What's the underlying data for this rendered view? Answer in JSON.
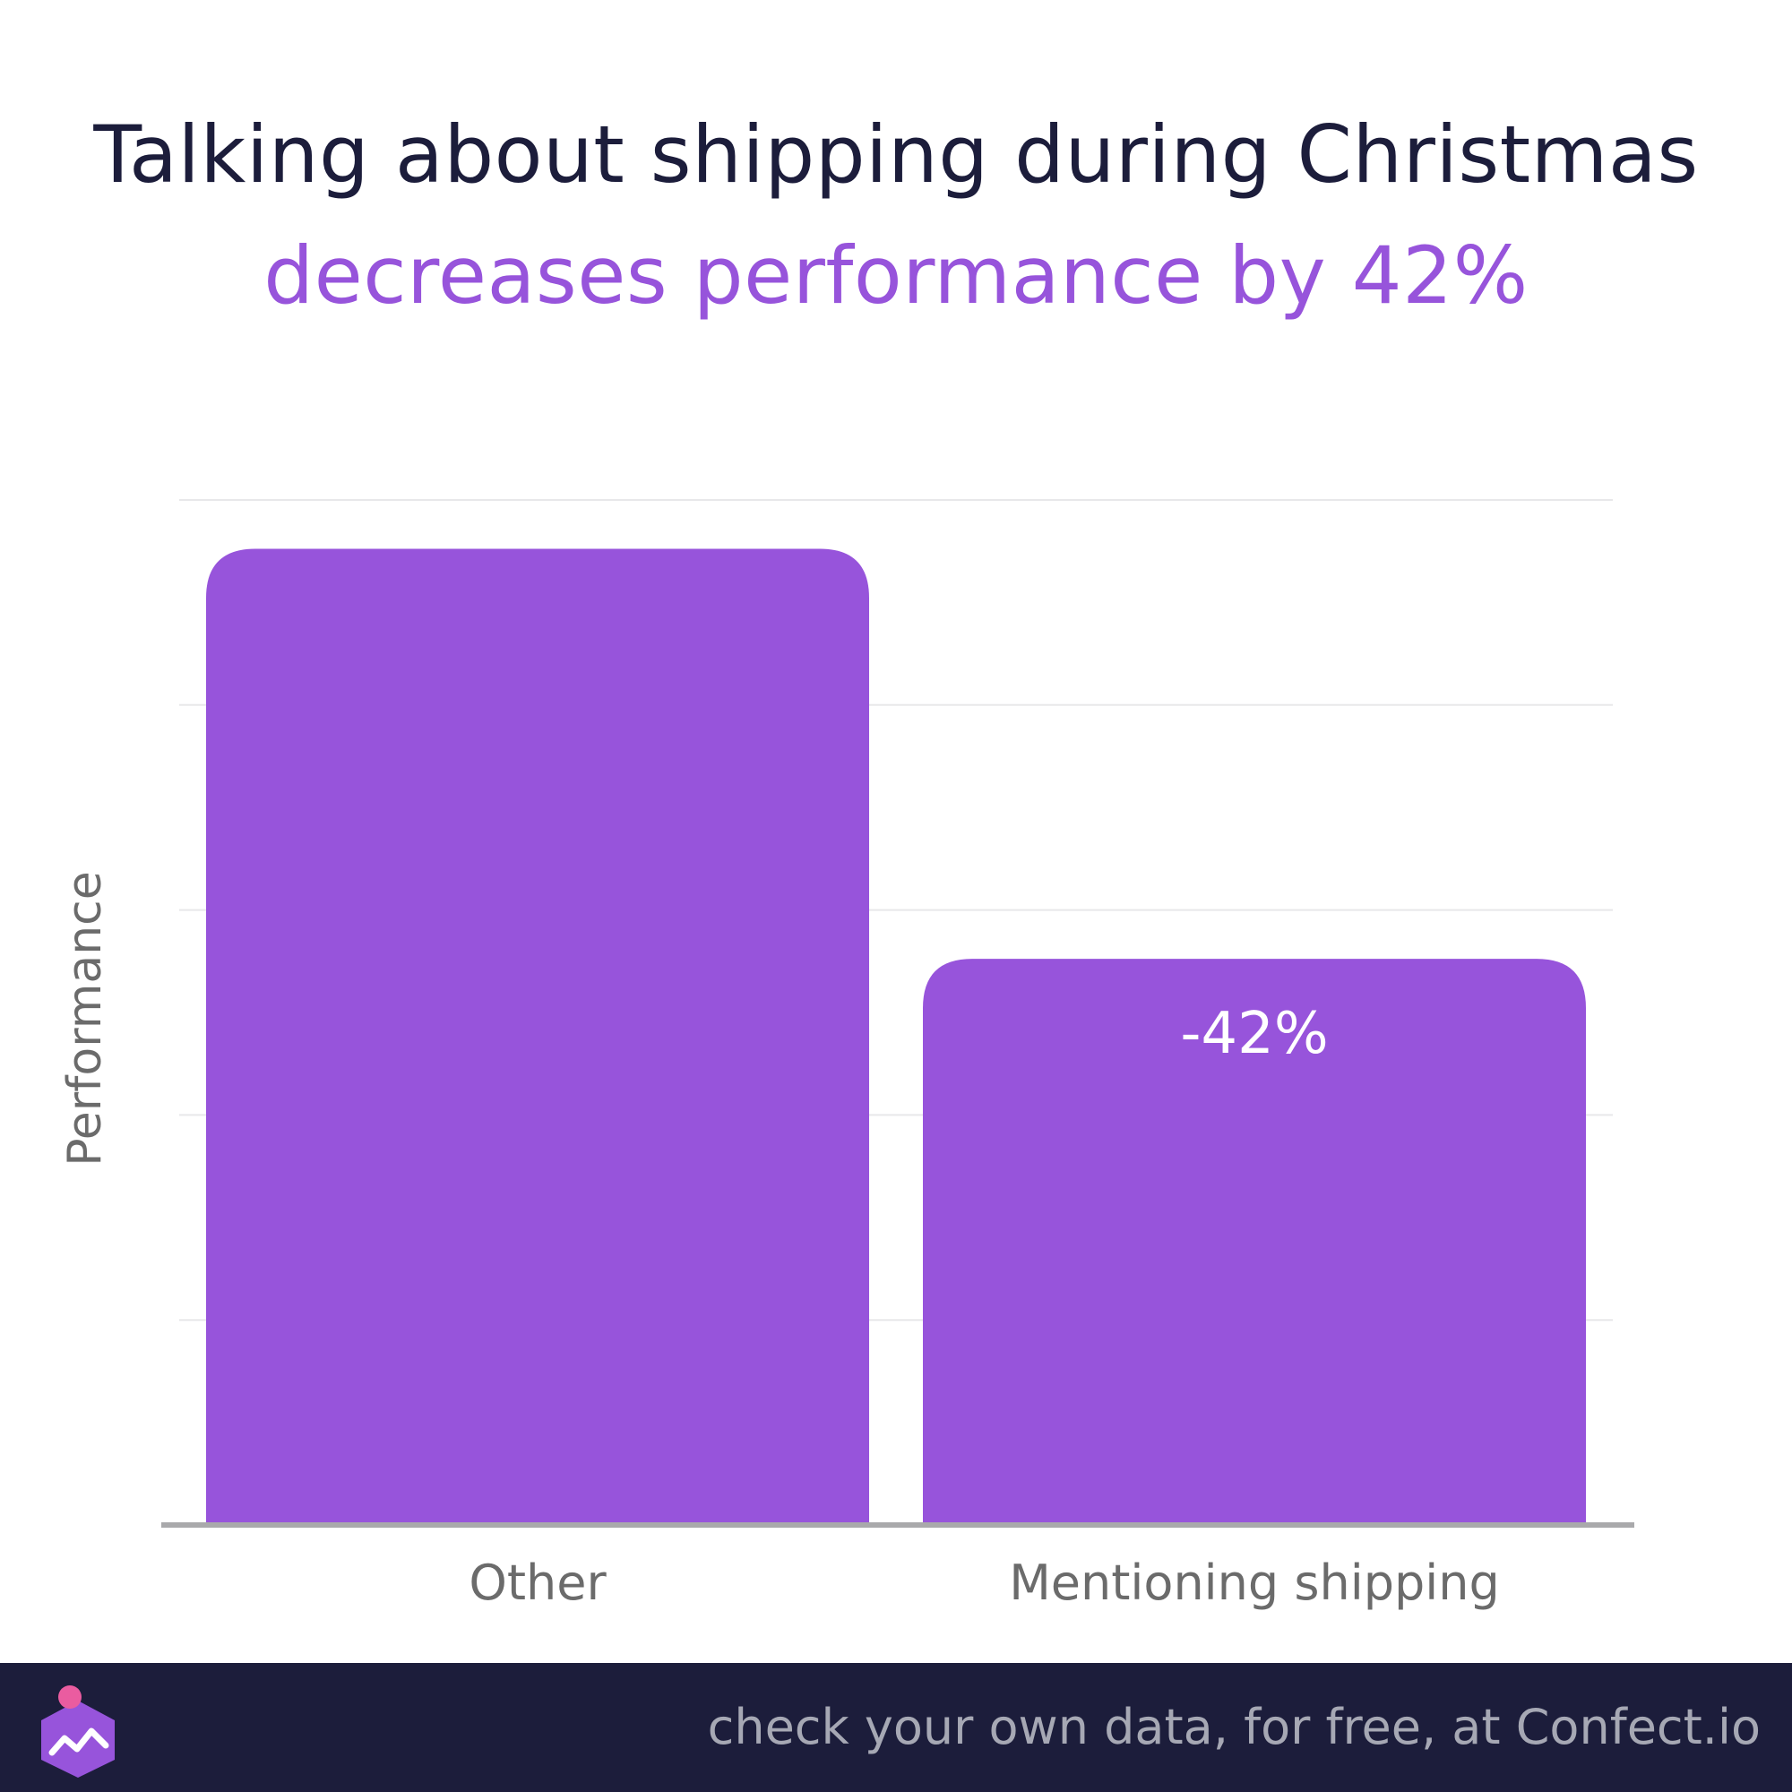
{
  "colors": {
    "background": "#ffffff",
    "title": "#1c1d3b",
    "accent": "#9754db",
    "bar": "#9754db",
    "grid": "#e8e8ea",
    "axis": "#a9a9ab",
    "label": "#6b6b6b",
    "bar_label": "#ffffff",
    "footer_bg": "#1c1d3b",
    "footer_text": "#a6a8b4",
    "logo_body": "#9754db",
    "logo_dot": "#ea5ca0"
  },
  "footer": {
    "text": "check your own data, for free, at Confect.io",
    "logo_icon": "confect-logo-icon"
  },
  "chart_data": {
    "type": "bar",
    "title": "Talking about shipping during Christmas",
    "subtitle": "decreases performance by 42%",
    "xlabel": "",
    "ylabel": "Performance",
    "categories": [
      "Other",
      "Mentioning shipping"
    ],
    "values": [
      100,
      58
    ],
    "data_labels": [
      "",
      "-42%"
    ],
    "ylim": [
      0,
      105
    ],
    "y_tick_labels_shown": false,
    "grid": true,
    "legend": "none"
  }
}
